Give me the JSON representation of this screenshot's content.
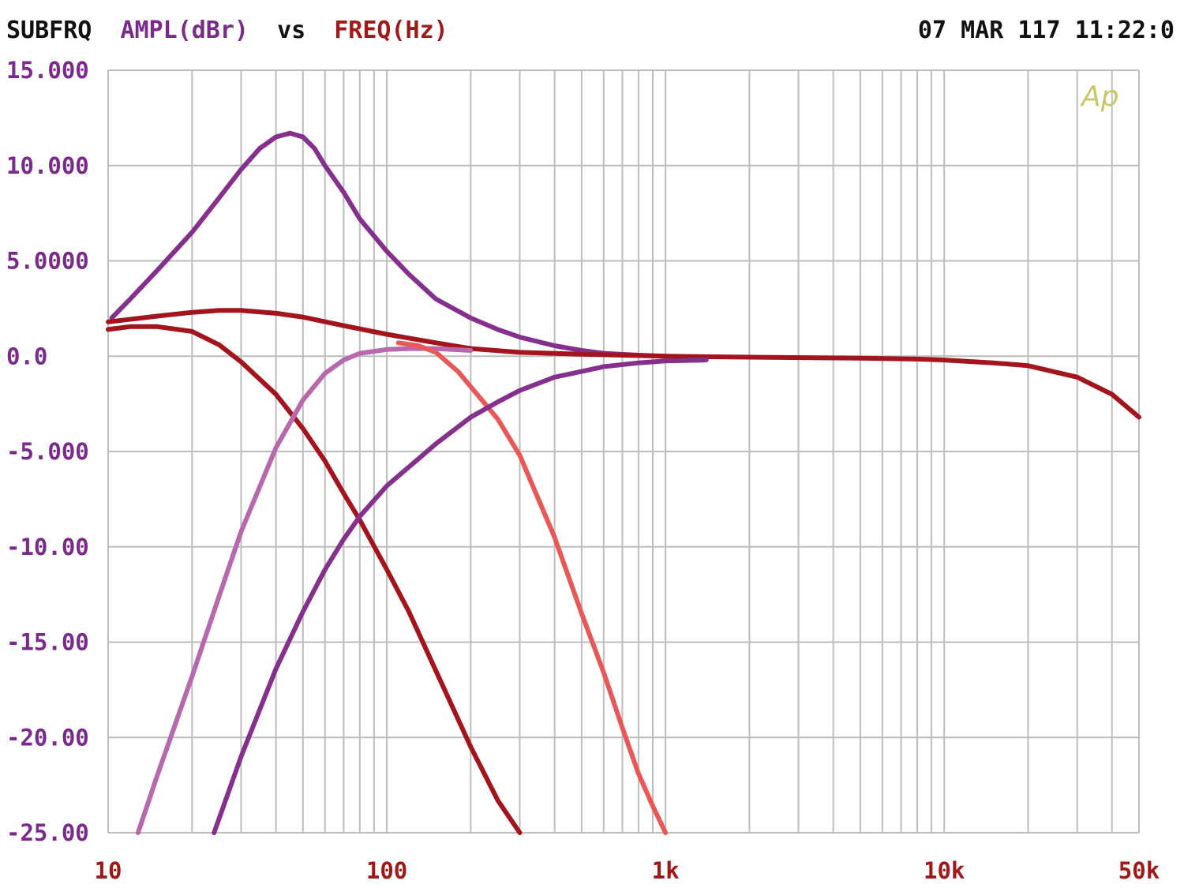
{
  "header": {
    "title_prefix": "SUBFRQ",
    "y_quantity": "AMPL(dBr)",
    "vs": "vs",
    "x_quantity": "FREQ(Hz)",
    "timestamp": "07 MAR 117 11:22:0"
  },
  "logo": "Ap",
  "colors": {
    "header_text": "#111111",
    "y_axis": "#7a2a8a",
    "x_axis": "#a01818",
    "grid": "#bdbdbd",
    "logo": "#c8c86a",
    "purple": "#86308e",
    "dark_red": "#a3141c",
    "pink": "#b868ad",
    "salmon": "#e85858"
  },
  "chart_data": {
    "type": "line",
    "title": "",
    "xlabel": "FREQ(Hz)",
    "ylabel": "AMPL(dBr)",
    "x_scale": "log",
    "xlim": [
      10,
      50000
    ],
    "ylim": [
      -25,
      15
    ],
    "grid": true,
    "y_ticks": [
      15,
      10,
      5,
      0,
      -5,
      -10,
      -15,
      -20,
      -25
    ],
    "y_tick_labels": [
      "15.000",
      "10.000",
      "5.0000",
      "0.0",
      "-5.000",
      "-10.00",
      "-15.00",
      "-20.00",
      "-25.00"
    ],
    "x_ticks": [
      10,
      100,
      1000,
      10000,
      50000
    ],
    "x_tick_labels": [
      "10",
      "100",
      "1k",
      "10k",
      "50k"
    ],
    "series": [
      {
        "color": "#86308e",
        "points": [
          [
            10.3,
            2.0
          ],
          [
            12,
            3.0
          ],
          [
            15,
            4.5
          ],
          [
            20,
            6.5
          ],
          [
            25,
            8.3
          ],
          [
            30,
            9.8
          ],
          [
            35,
            10.9
          ],
          [
            40,
            11.5
          ],
          [
            45,
            11.7
          ],
          [
            50,
            11.5
          ],
          [
            55,
            10.9
          ],
          [
            60,
            10.0
          ],
          [
            70,
            8.6
          ],
          [
            80,
            7.2
          ],
          [
            100,
            5.5
          ],
          [
            120,
            4.3
          ],
          [
            150,
            3.0
          ],
          [
            200,
            2.0
          ],
          [
            250,
            1.4
          ],
          [
            300,
            1.0
          ],
          [
            400,
            0.55
          ],
          [
            500,
            0.3
          ],
          [
            600,
            0.15
          ],
          [
            800,
            0.05
          ],
          [
            1000,
            0.0
          ]
        ]
      },
      {
        "color": "#a3141c",
        "points": [
          [
            10,
            1.8
          ],
          [
            15,
            2.1
          ],
          [
            20,
            2.3
          ],
          [
            25,
            2.4
          ],
          [
            30,
            2.4
          ],
          [
            40,
            2.25
          ],
          [
            50,
            2.05
          ],
          [
            70,
            1.6
          ],
          [
            100,
            1.15
          ],
          [
            150,
            0.7
          ],
          [
            200,
            0.4
          ],
          [
            300,
            0.2
          ],
          [
            500,
            0.1
          ],
          [
            1000,
            0.0
          ],
          [
            2000,
            -0.05
          ],
          [
            5000,
            -0.1
          ],
          [
            8000,
            -0.15
          ],
          [
            10000,
            -0.2
          ],
          [
            15000,
            -0.35
          ],
          [
            20000,
            -0.5
          ],
          [
            30000,
            -1.1
          ],
          [
            40000,
            -2.0
          ],
          [
            50000,
            -3.2
          ]
        ]
      },
      {
        "color": "#a3141c",
        "points": [
          [
            10,
            1.4
          ],
          [
            12,
            1.55
          ],
          [
            15,
            1.55
          ],
          [
            20,
            1.3
          ],
          [
            25,
            0.6
          ],
          [
            30,
            -0.3
          ],
          [
            40,
            -2.0
          ],
          [
            50,
            -3.8
          ],
          [
            60,
            -5.5
          ],
          [
            70,
            -7.2
          ],
          [
            80,
            -8.6
          ],
          [
            100,
            -11.2
          ],
          [
            120,
            -13.4
          ],
          [
            150,
            -16.5
          ],
          [
            200,
            -20.5
          ],
          [
            250,
            -23.3
          ],
          [
            300,
            -25.0
          ]
        ]
      },
      {
        "color": "#b868ad",
        "points": [
          [
            12.8,
            -25
          ],
          [
            15,
            -22
          ],
          [
            20,
            -16.8
          ],
          [
            25,
            -12.6
          ],
          [
            30,
            -9.2
          ],
          [
            40,
            -4.8
          ],
          [
            50,
            -2.3
          ],
          [
            60,
            -0.9
          ],
          [
            70,
            -0.2
          ],
          [
            80,
            0.15
          ],
          [
            100,
            0.35
          ],
          [
            120,
            0.4
          ],
          [
            150,
            0.4
          ],
          [
            200,
            0.3
          ]
        ]
      },
      {
        "color": "#e85858",
        "points": [
          [
            110,
            0.7
          ],
          [
            130,
            0.55
          ],
          [
            150,
            0.2
          ],
          [
            180,
            -0.8
          ],
          [
            200,
            -1.6
          ],
          [
            250,
            -3.3
          ],
          [
            300,
            -5.2
          ],
          [
            400,
            -9.5
          ],
          [
            500,
            -13.5
          ],
          [
            600,
            -16.6
          ],
          [
            700,
            -19.5
          ],
          [
            800,
            -21.9
          ],
          [
            900,
            -23.6
          ],
          [
            1000,
            -25
          ]
        ]
      },
      {
        "color": "#86308e",
        "points": [
          [
            24,
            -25
          ],
          [
            30,
            -21
          ],
          [
            40,
            -16.4
          ],
          [
            50,
            -13.4
          ],
          [
            60,
            -11.2
          ],
          [
            70,
            -9.6
          ],
          [
            80,
            -8.4
          ],
          [
            100,
            -6.8
          ],
          [
            150,
            -4.6
          ],
          [
            200,
            -3.2
          ],
          [
            250,
            -2.4
          ],
          [
            300,
            -1.8
          ],
          [
            400,
            -1.1
          ],
          [
            500,
            -0.8
          ],
          [
            600,
            -0.55
          ],
          [
            800,
            -0.35
          ],
          [
            1000,
            -0.25
          ],
          [
            1400,
            -0.2
          ]
        ]
      }
    ]
  }
}
